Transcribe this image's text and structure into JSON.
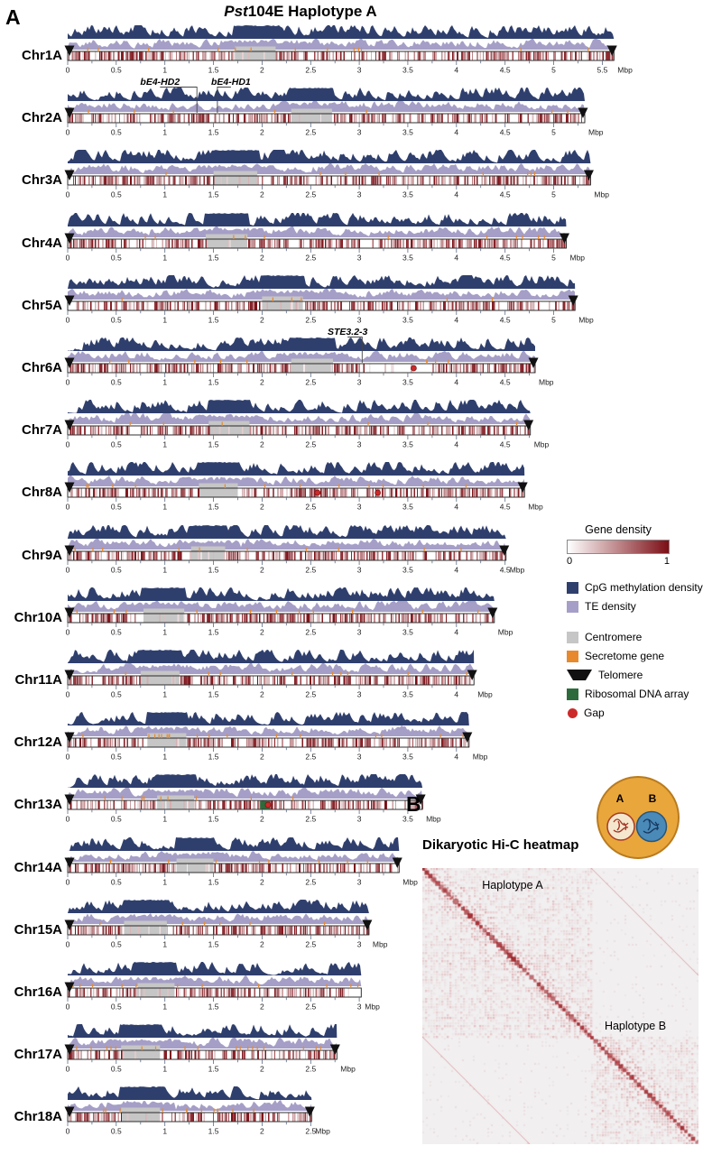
{
  "figure": {
    "panelA_label": "A",
    "panelB_label": "B",
    "title": {
      "italic": "Pst",
      "rest": "104E Haplotype A"
    },
    "unit": "Mbp"
  },
  "legend": {
    "gene_density": {
      "title": "Gene density",
      "min": "0",
      "max": "1",
      "color_start": "#ffffff",
      "color_end": "#7c0e15"
    },
    "items": [
      {
        "label": "CpG methylation density",
        "swatch": "square",
        "color": "#2f3f6d",
        "group": 1
      },
      {
        "label": "TE density",
        "swatch": "square",
        "color": "#a59fc7",
        "group": 1
      },
      {
        "label": "Centromere",
        "swatch": "square",
        "color": "#c6c6c6",
        "group": 2
      },
      {
        "label": "Secretome gene",
        "swatch": "square",
        "color": "#e78a2e",
        "group": 2
      },
      {
        "label": "Telomere",
        "swatch": "triangle",
        "color": "#111111",
        "group": 2
      },
      {
        "label": "Ribosomal DNA array",
        "swatch": "square",
        "color": "#2e6b3c",
        "group": 2
      },
      {
        "label": "Gap",
        "swatch": "circle",
        "color": "#cc2a2a",
        "group": 2
      }
    ]
  },
  "panelB": {
    "title": "Dikaryotic Hi-C heatmap",
    "haplotypeA_label": "Haplotype A",
    "haplotypeB_label": "Haplotype B",
    "cartoon": {
      "a": "A",
      "b": "B"
    }
  },
  "chart_data": [
    {
      "type": "area",
      "name": "chromosome-density-tracks",
      "title": "Pst104E Haplotype A",
      "x_unit": "Mbp",
      "tick_step": 0.5,
      "tracks": [
        "CpG methylation density",
        "TE density",
        "Gene density (0 to 1, white to dark red)",
        "Secretome genes (orange ticks)"
      ],
      "colors": {
        "cpg": "#2f3f6d",
        "te": "#a59fc7",
        "centromere": "#c6c6c6",
        "secretome": "#e78a2e",
        "telomere": "#111111",
        "rdna": "#2e6b3c",
        "gap": "#cc2a2a",
        "gene_density_max": "#7c0e15",
        "axis_tick": "#5a6b85"
      },
      "chromosomes": [
        {
          "name": "Chr1A",
          "length_mbp": 5.62,
          "centromere_mbp": [
            1.72,
            2.14
          ],
          "telomeres": [
            true,
            true
          ],
          "gaps_mbp": [],
          "rdna_mbp": [],
          "pale_regions_mbp": [],
          "annotations": []
        },
        {
          "name": "Chr2A",
          "length_mbp": 5.32,
          "centromere_mbp": [
            2.3,
            2.72
          ],
          "telomeres": [
            true,
            true
          ],
          "gaps_mbp": [],
          "rdna_mbp": [],
          "pale_regions_mbp": [],
          "annotations": [
            {
              "text": "bE4-HD2",
              "label_x": 0.95,
              "target_x": 1.33
            },
            {
              "text": "bE4-HD1",
              "label_x": 1.68,
              "target_x": 1.54
            }
          ]
        },
        {
          "name": "Chr3A",
          "length_mbp": 5.38,
          "centromere_mbp": [
            1.5,
            1.95
          ],
          "telomeres": [
            true,
            true
          ],
          "gaps_mbp": [],
          "rdna_mbp": [],
          "pale_regions_mbp": [],
          "annotations": []
        },
        {
          "name": "Chr4A",
          "length_mbp": 5.13,
          "centromere_mbp": [
            1.42,
            1.85
          ],
          "telomeres": [
            true,
            true
          ],
          "gaps_mbp": [],
          "rdna_mbp": [],
          "pale_regions_mbp": [],
          "annotations": []
        },
        {
          "name": "Chr5A",
          "length_mbp": 5.22,
          "centromere_mbp": [
            2.0,
            2.42
          ],
          "telomeres": [
            true,
            true
          ],
          "gaps_mbp": [],
          "rdna_mbp": [],
          "pale_regions_mbp": [],
          "annotations": []
        },
        {
          "name": "Chr6A",
          "length_mbp": 4.81,
          "centromere_mbp": [
            2.3,
            2.73
          ],
          "telomeres": [
            true,
            true
          ],
          "gaps_mbp": [
            3.56
          ],
          "rdna_mbp": [],
          "pale_regions_mbp": [
            [
              3.05,
              3.75
            ]
          ],
          "annotations": [
            {
              "text": "STE3.2-3",
              "label_x": 2.88,
              "target_x": 3.03
            }
          ]
        },
        {
          "name": "Chr7A",
          "length_mbp": 4.76,
          "centromere_mbp": [
            1.45,
            1.87
          ],
          "telomeres": [
            true,
            true
          ],
          "gaps_mbp": [],
          "rdna_mbp": [],
          "pale_regions_mbp": [],
          "annotations": []
        },
        {
          "name": "Chr8A",
          "length_mbp": 4.7,
          "centromere_mbp": [
            1.35,
            1.75
          ],
          "telomeres": [
            true,
            true
          ],
          "gaps_mbp": [
            2.57,
            3.19
          ],
          "rdna_mbp": [],
          "pale_regions_mbp": [],
          "annotations": []
        },
        {
          "name": "Chr9A",
          "length_mbp": 4.51,
          "centromere_mbp": [
            1.27,
            1.62
          ],
          "telomeres": [
            true,
            true
          ],
          "gaps_mbp": [],
          "rdna_mbp": [],
          "pale_regions_mbp": [],
          "annotations": []
        },
        {
          "name": "Chr10A",
          "length_mbp": 4.39,
          "centromere_mbp": [
            0.78,
            1.2
          ],
          "telomeres": [
            true,
            true
          ],
          "gaps_mbp": [],
          "rdna_mbp": [],
          "pale_regions_mbp": [],
          "annotations": []
        },
        {
          "name": "Chr11A",
          "length_mbp": 4.18,
          "centromere_mbp": [
            0.75,
            1.15
          ],
          "telomeres": [
            true,
            true
          ],
          "gaps_mbp": [],
          "rdna_mbp": [],
          "pale_regions_mbp": [],
          "annotations": []
        },
        {
          "name": "Chr12A",
          "length_mbp": 4.13,
          "centromere_mbp": [
            0.82,
            1.22
          ],
          "telomeres": [
            true,
            true
          ],
          "gaps_mbp": [],
          "rdna_mbp": [],
          "pale_regions_mbp": [],
          "annotations": []
        },
        {
          "name": "Chr13A",
          "length_mbp": 3.65,
          "centromere_mbp": [
            0.92,
            1.3
          ],
          "telomeres": [
            true,
            true
          ],
          "gaps_mbp": [
            2.06
          ],
          "rdna_mbp": [
            [
              1.98,
              2.08
            ]
          ],
          "pale_regions_mbp": [],
          "annotations": []
        },
        {
          "name": "Chr14A",
          "length_mbp": 3.41,
          "centromere_mbp": [
            1.12,
            1.5
          ],
          "telomeres": [
            true,
            true
          ],
          "gaps_mbp": [],
          "rdna_mbp": [],
          "pale_regions_mbp": [],
          "annotations": []
        },
        {
          "name": "Chr15A",
          "length_mbp": 3.1,
          "centromere_mbp": [
            0.58,
            1.02
          ],
          "telomeres": [
            true,
            true
          ],
          "gaps_mbp": [],
          "rdna_mbp": [],
          "pale_regions_mbp": [],
          "annotations": []
        },
        {
          "name": "Chr16A",
          "length_mbp": 3.02,
          "centromere_mbp": [
            0.72,
            1.1
          ],
          "telomeres": [
            true,
            false
          ],
          "gaps_mbp": [],
          "rdna_mbp": [],
          "pale_regions_mbp": [
            [
              2.86,
              3.02
            ]
          ],
          "annotations": []
        },
        {
          "name": "Chr17A",
          "length_mbp": 2.77,
          "centromere_mbp": [
            0.55,
            0.95
          ],
          "telomeres": [
            true,
            true
          ],
          "gaps_mbp": [],
          "rdna_mbp": [],
          "pale_regions_mbp": [],
          "annotations": []
        },
        {
          "name": "Chr18A",
          "length_mbp": 2.51,
          "centromere_mbp": [
            0.55,
            0.95
          ],
          "telomeres": [
            true,
            true
          ],
          "gaps_mbp": [],
          "rdna_mbp": [],
          "pale_regions_mbp": [],
          "annotations": []
        }
      ]
    },
    {
      "type": "heatmap",
      "name": "dikaryotic-hic-heatmap",
      "title": "Dikaryotic Hi-C heatmap",
      "blocks": [
        {
          "label": "Haplotype A",
          "fraction": 0.61
        },
        {
          "label": "Haplotype B",
          "fraction": 0.39
        }
      ],
      "legend_position": "none",
      "palette": [
        "#f1eff0",
        "#c03a3e",
        "#8f1016"
      ]
    }
  ]
}
